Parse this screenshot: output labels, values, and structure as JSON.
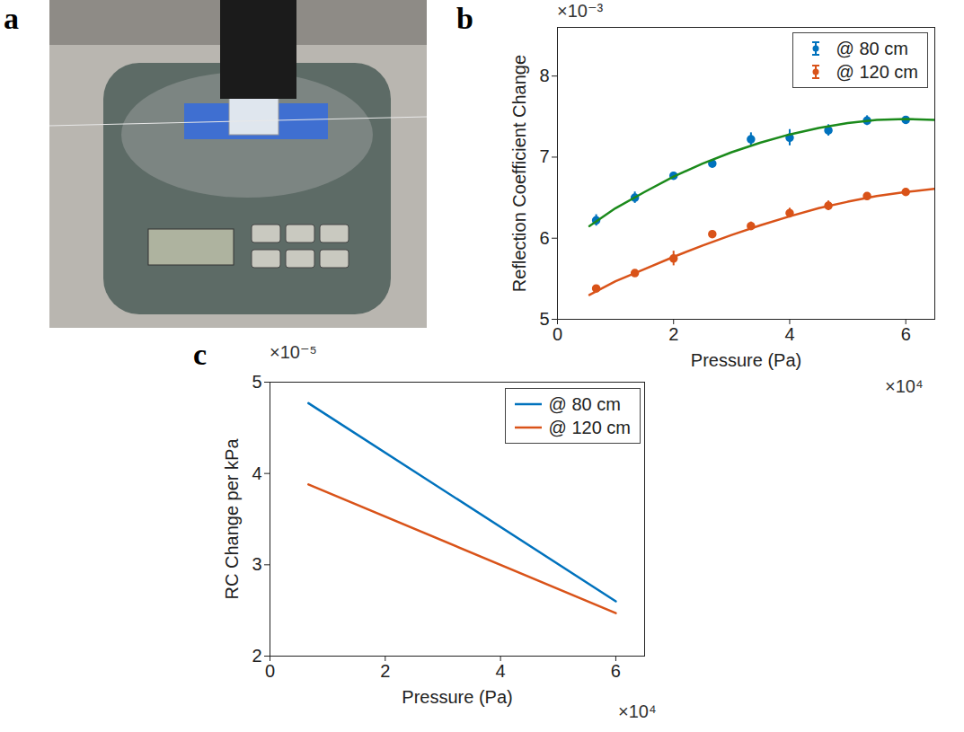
{
  "photo": {
    "panel_label": "a"
  },
  "chart_data": [
    {
      "panel_label": "b",
      "type": "scatter",
      "xlabel": "Pressure (Pa)",
      "ylabel": "Reflection Coefficient Change",
      "x_axis_multiplier": "×10⁴",
      "y_axis_multiplier": "×10⁻³",
      "xlim": [
        0,
        6.5
      ],
      "ylim": [
        5,
        8.6
      ],
      "xticks": [
        0,
        2,
        4,
        6
      ],
      "yticks": [
        5,
        6,
        7,
        8
      ],
      "grid": false,
      "legend": "top-right",
      "series": [
        {
          "name": "@ 80 cm",
          "type": "scatter",
          "marker": "dot",
          "color": "#0072bd",
          "x": [
            0.667,
            1.333,
            2,
            2.667,
            3.333,
            4,
            4.667,
            5.333,
            6
          ],
          "values": [
            6.22,
            6.5,
            6.77,
            6.92,
            7.22,
            7.24,
            7.33,
            7.45,
            7.46
          ],
          "errors": [
            0.07,
            0.07,
            0.04,
            0.04,
            0.08,
            0.1,
            0.07,
            0.06,
            0.03
          ]
        },
        {
          "name": "@ 120 cm",
          "type": "scatter",
          "marker": "dot",
          "color": "#d95319",
          "x": [
            0.667,
            1.333,
            2,
            2.667,
            3.333,
            4,
            4.667,
            5.333,
            6
          ],
          "values": [
            5.38,
            5.57,
            5.75,
            6.05,
            6.15,
            6.31,
            6.4,
            6.52,
            6.57
          ],
          "errors": [
            0.04,
            0.03,
            0.09,
            0.04,
            0.05,
            0.06,
            0.06,
            0.03,
            0.04
          ]
        },
        {
          "type": "line",
          "line_style": "solid",
          "color": "#1b8a1b",
          "x": [
            0.55,
            1,
            1.5,
            2,
            2.5,
            3,
            3.5,
            4,
            4.5,
            5,
            5.5,
            6,
            6.5
          ],
          "values": [
            6.15,
            6.37,
            6.57,
            6.76,
            6.92,
            7.06,
            7.18,
            7.28,
            7.36,
            7.42,
            7.46,
            7.47,
            7.46
          ]
        },
        {
          "type": "line",
          "line_style": "solid",
          "color": "#d95319",
          "x": [
            0.55,
            1,
            1.5,
            2,
            2.5,
            3,
            3.5,
            4,
            4.5,
            5,
            5.5,
            6,
            6.5
          ],
          "values": [
            5.3,
            5.47,
            5.62,
            5.77,
            5.91,
            6.04,
            6.16,
            6.27,
            6.37,
            6.45,
            6.52,
            6.57,
            6.61
          ]
        }
      ]
    },
    {
      "panel_label": "c",
      "type": "line",
      "xlabel": "Pressure (Pa)",
      "ylabel": "RC Change per kPa",
      "x_axis_multiplier": "×10⁴",
      "y_axis_multiplier": "×10⁻⁵",
      "xlim": [
        0,
        6.5
      ],
      "ylim": [
        2,
        5
      ],
      "xticks": [
        0,
        2,
        4,
        6
      ],
      "yticks": [
        2,
        3,
        4,
        5
      ],
      "grid": false,
      "legend": "top-right",
      "series": [
        {
          "name": "@ 80 cm",
          "type": "line",
          "line_style": "solid",
          "color": "#0072bd",
          "x": [
            0.667,
            6
          ],
          "values": [
            4.77,
            2.6
          ]
        },
        {
          "name": "@ 120 cm",
          "type": "line",
          "line_style": "solid",
          "color": "#d95319",
          "x": [
            0.667,
            6
          ],
          "values": [
            3.88,
            2.47
          ]
        }
      ]
    }
  ]
}
